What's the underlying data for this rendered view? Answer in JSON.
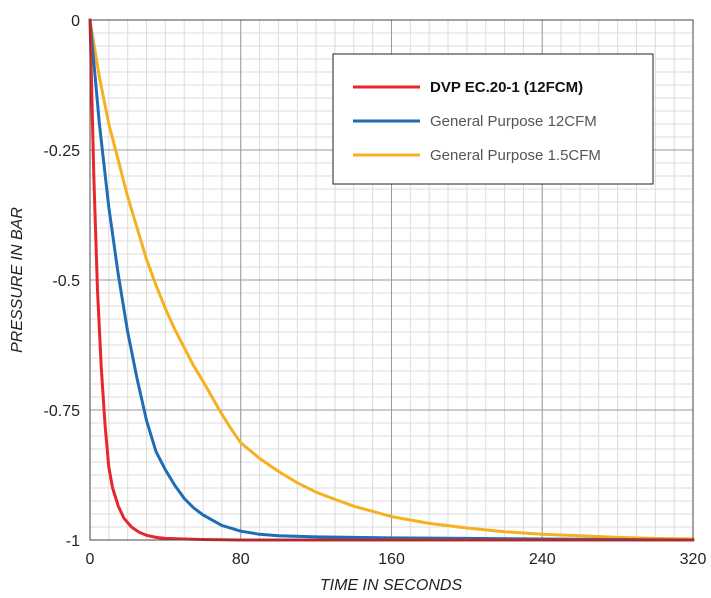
{
  "chart_data": {
    "type": "line",
    "xlabel": "TIME IN SECONDS",
    "ylabel": "PRESSURE IN BAR",
    "xlim": [
      0,
      320
    ],
    "ylim": [
      -1,
      0
    ],
    "x_ticks": [
      0,
      80,
      160,
      240,
      320
    ],
    "x_tick_labels": [
      "0",
      "80",
      "160",
      "240",
      "320"
    ],
    "y_ticks": [
      0,
      -0.25,
      -0.5,
      -0.75,
      -1
    ],
    "y_tick_labels": [
      "0",
      "-0.25",
      "-0.5",
      "-0.75",
      "-1"
    ],
    "grid": true,
    "legend_position": "top-right",
    "series": [
      {
        "name": "DVP EC.20-1 (12FCM)",
        "color": "#e8262b",
        "x": [
          0,
          2,
          4,
          6,
          8,
          10,
          12,
          15,
          18,
          22,
          26,
          30,
          35,
          40,
          50,
          60,
          80,
          120,
          200,
          320
        ],
        "y": [
          0,
          -0.3,
          -0.52,
          -0.67,
          -0.78,
          -0.86,
          -0.9,
          -0.935,
          -0.958,
          -0.975,
          -0.985,
          -0.991,
          -0.995,
          -0.997,
          -0.998,
          -0.999,
          -1,
          -1,
          -1,
          -1
        ]
      },
      {
        "name": "General Purpose 12CFM",
        "color": "#1f6eb5",
        "x": [
          0,
          5,
          10,
          15,
          20,
          25,
          30,
          35,
          40,
          45,
          50,
          55,
          60,
          70,
          80,
          90,
          100,
          120,
          140,
          160,
          200,
          240,
          280,
          320
        ],
        "y": [
          0,
          -0.2,
          -0.36,
          -0.49,
          -0.6,
          -0.69,
          -0.77,
          -0.83,
          -0.865,
          -0.895,
          -0.92,
          -0.938,
          -0.952,
          -0.972,
          -0.983,
          -0.989,
          -0.992,
          -0.994,
          -0.995,
          -0.996,
          -0.997,
          -0.998,
          -0.999,
          -1
        ]
      },
      {
        "name": "General Purpose 1.5CFM",
        "color": "#f5b121",
        "x": [
          0,
          5,
          10,
          15,
          20,
          25,
          30,
          35,
          40,
          45,
          50,
          55,
          60,
          65,
          70,
          75,
          80,
          90,
          100,
          110,
          120,
          130,
          140,
          160,
          180,
          200,
          220,
          240,
          260,
          280,
          300,
          320
        ],
        "y": [
          0,
          -0.11,
          -0.2,
          -0.27,
          -0.34,
          -0.4,
          -0.46,
          -0.51,
          -0.555,
          -0.595,
          -0.63,
          -0.665,
          -0.695,
          -0.727,
          -0.758,
          -0.787,
          -0.813,
          -0.843,
          -0.868,
          -0.89,
          -0.908,
          -0.922,
          -0.935,
          -0.955,
          -0.968,
          -0.977,
          -0.984,
          -0.989,
          -0.992,
          -0.995,
          -0.997,
          -0.998
        ]
      }
    ]
  }
}
